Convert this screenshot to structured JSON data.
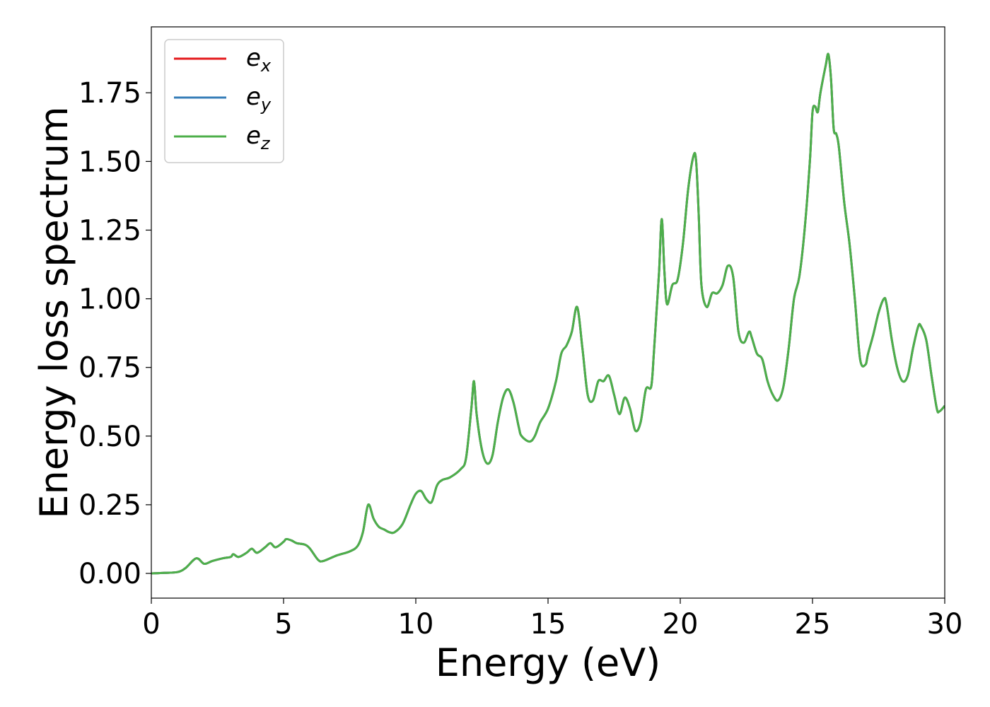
{
  "chart_data": {
    "type": "line",
    "title": "",
    "xlabel": "Energy (eV)",
    "ylabel": "Energy loss spectrum",
    "xlim": [
      0,
      30
    ],
    "ylim": [
      -0.09,
      1.99
    ],
    "xticks": [
      0,
      5,
      10,
      15,
      20,
      25,
      30
    ],
    "xtick_labels": [
      "0",
      "5",
      "10",
      "15",
      "20",
      "25",
      "30"
    ],
    "yticks": [
      0.0,
      0.25,
      0.5,
      0.75,
      1.0,
      1.25,
      1.5,
      1.75
    ],
    "ytick_labels": [
      "0.00",
      "0.25",
      "0.50",
      "0.75",
      "1.00",
      "1.25",
      "1.50",
      "1.75"
    ],
    "grid": false,
    "legend_position": "top-left",
    "legend": [
      {
        "base": "e",
        "sub": "x",
        "color": "#e41a1c"
      },
      {
        "base": "e",
        "sub": "y",
        "color": "#377eb8"
      },
      {
        "base": "e",
        "sub": "z",
        "color": "#4daf4a"
      }
    ],
    "x": [
      0,
      0.5,
      1.0,
      1.3,
      1.7,
      2.0,
      2.3,
      2.7,
      3.0,
      3.1,
      3.3,
      3.6,
      3.8,
      4.0,
      4.3,
      4.5,
      4.7,
      5.0,
      5.1,
      5.3,
      5.5,
      5.8,
      6.0,
      6.3,
      6.5,
      7.0,
      7.5,
      7.8,
      8.0,
      8.2,
      8.4,
      8.6,
      8.8,
      9.0,
      9.2,
      9.5,
      9.8,
      10.0,
      10.2,
      10.4,
      10.6,
      10.8,
      11.0,
      11.3,
      11.7,
      11.9,
      12.1,
      12.2,
      12.3,
      12.5,
      12.7,
      12.9,
      13.1,
      13.3,
      13.5,
      13.7,
      13.9,
      14.0,
      14.3,
      14.5,
      14.7,
      15.0,
      15.3,
      15.5,
      15.7,
      15.9,
      16.1,
      16.3,
      16.5,
      16.7,
      16.9,
      17.1,
      17.3,
      17.5,
      17.7,
      17.9,
      18.1,
      18.3,
      18.5,
      18.7,
      18.9,
      19.0,
      19.1,
      19.2,
      19.3,
      19.4,
      19.5,
      19.7,
      19.9,
      20.1,
      20.3,
      20.5,
      20.6,
      20.7,
      20.8,
      21.0,
      21.2,
      21.4,
      21.6,
      21.8,
      22.0,
      22.2,
      22.4,
      22.6,
      22.7,
      22.9,
      23.1,
      23.3,
      23.5,
      23.7,
      23.9,
      24.1,
      24.3,
      24.5,
      24.7,
      24.9,
      25.0,
      25.1,
      25.2,
      25.3,
      25.5,
      25.6,
      25.7,
      25.8,
      25.9,
      26.0,
      26.2,
      26.4,
      26.6,
      26.8,
      27.0,
      27.1,
      27.3,
      27.5,
      27.7,
      27.8,
      28.0,
      28.2,
      28.4,
      28.6,
      28.8,
      29.0,
      29.1,
      29.3,
      29.5,
      29.7,
      29.8,
      30.0
    ],
    "series": [
      {
        "name": "e_x",
        "color": "#e41a1c",
        "values": [
          0,
          0.002,
          0.005,
          0.02,
          0.055,
          0.035,
          0.045,
          0.055,
          0.06,
          0.07,
          0.06,
          0.075,
          0.09,
          0.075,
          0.095,
          0.11,
          0.095,
          0.115,
          0.125,
          0.12,
          0.11,
          0.105,
          0.09,
          0.05,
          0.045,
          0.065,
          0.08,
          0.1,
          0.15,
          0.25,
          0.2,
          0.17,
          0.16,
          0.15,
          0.15,
          0.18,
          0.25,
          0.29,
          0.3,
          0.27,
          0.26,
          0.32,
          0.34,
          0.35,
          0.38,
          0.42,
          0.6,
          0.7,
          0.58,
          0.45,
          0.4,
          0.43,
          0.55,
          0.64,
          0.67,
          0.62,
          0.53,
          0.5,
          0.48,
          0.5,
          0.55,
          0.6,
          0.7,
          0.8,
          0.83,
          0.88,
          0.97,
          0.82,
          0.65,
          0.63,
          0.7,
          0.7,
          0.72,
          0.65,
          0.58,
          0.64,
          0.6,
          0.52,
          0.55,
          0.67,
          0.68,
          0.8,
          0.95,
          1.1,
          1.29,
          1.1,
          0.98,
          1.05,
          1.07,
          1.2,
          1.4,
          1.52,
          1.5,
          1.3,
          1.05,
          0.97,
          1.02,
          1.02,
          1.05,
          1.12,
          1.08,
          0.88,
          0.84,
          0.88,
          0.86,
          0.8,
          0.78,
          0.7,
          0.65,
          0.63,
          0.68,
          0.82,
          1.0,
          1.08,
          1.25,
          1.5,
          1.68,
          1.7,
          1.68,
          1.75,
          1.85,
          1.89,
          1.8,
          1.62,
          1.6,
          1.55,
          1.35,
          1.2,
          1.0,
          0.78,
          0.76,
          0.8,
          0.87,
          0.95,
          1.0,
          0.98,
          0.85,
          0.75,
          0.7,
          0.72,
          0.82,
          0.9,
          0.9,
          0.85,
          0.72,
          0.6,
          0.59,
          0.61
        ]
      },
      {
        "name": "e_y",
        "color": "#377eb8",
        "values": [
          0,
          0.002,
          0.005,
          0.02,
          0.055,
          0.035,
          0.045,
          0.055,
          0.06,
          0.07,
          0.06,
          0.075,
          0.09,
          0.075,
          0.095,
          0.11,
          0.095,
          0.115,
          0.125,
          0.12,
          0.11,
          0.105,
          0.09,
          0.05,
          0.045,
          0.065,
          0.08,
          0.1,
          0.15,
          0.25,
          0.2,
          0.17,
          0.16,
          0.15,
          0.15,
          0.18,
          0.25,
          0.29,
          0.3,
          0.27,
          0.26,
          0.32,
          0.34,
          0.35,
          0.38,
          0.42,
          0.6,
          0.7,
          0.58,
          0.45,
          0.4,
          0.43,
          0.55,
          0.64,
          0.67,
          0.62,
          0.53,
          0.5,
          0.48,
          0.5,
          0.55,
          0.6,
          0.7,
          0.8,
          0.83,
          0.88,
          0.97,
          0.82,
          0.65,
          0.63,
          0.7,
          0.7,
          0.72,
          0.65,
          0.58,
          0.64,
          0.6,
          0.52,
          0.55,
          0.67,
          0.68,
          0.8,
          0.95,
          1.1,
          1.29,
          1.1,
          0.98,
          1.05,
          1.07,
          1.2,
          1.4,
          1.52,
          1.5,
          1.3,
          1.05,
          0.97,
          1.02,
          1.02,
          1.05,
          1.12,
          1.08,
          0.88,
          0.84,
          0.88,
          0.86,
          0.8,
          0.78,
          0.7,
          0.65,
          0.63,
          0.68,
          0.82,
          1.0,
          1.08,
          1.25,
          1.5,
          1.68,
          1.7,
          1.68,
          1.75,
          1.85,
          1.89,
          1.8,
          1.62,
          1.6,
          1.55,
          1.35,
          1.2,
          1.0,
          0.78,
          0.76,
          0.8,
          0.87,
          0.95,
          1.0,
          0.98,
          0.85,
          0.75,
          0.7,
          0.72,
          0.82,
          0.9,
          0.9,
          0.85,
          0.72,
          0.6,
          0.59,
          0.61
        ]
      },
      {
        "name": "e_z",
        "color": "#4daf4a",
        "values": [
          0,
          0.002,
          0.005,
          0.02,
          0.055,
          0.035,
          0.045,
          0.055,
          0.06,
          0.07,
          0.06,
          0.075,
          0.09,
          0.075,
          0.095,
          0.11,
          0.095,
          0.115,
          0.125,
          0.12,
          0.11,
          0.105,
          0.09,
          0.05,
          0.045,
          0.065,
          0.08,
          0.1,
          0.15,
          0.25,
          0.2,
          0.17,
          0.16,
          0.15,
          0.15,
          0.18,
          0.25,
          0.29,
          0.3,
          0.27,
          0.26,
          0.32,
          0.34,
          0.35,
          0.38,
          0.42,
          0.6,
          0.7,
          0.58,
          0.45,
          0.4,
          0.43,
          0.55,
          0.64,
          0.67,
          0.62,
          0.53,
          0.5,
          0.48,
          0.5,
          0.55,
          0.6,
          0.7,
          0.8,
          0.83,
          0.88,
          0.97,
          0.82,
          0.65,
          0.63,
          0.7,
          0.7,
          0.72,
          0.65,
          0.58,
          0.64,
          0.6,
          0.52,
          0.55,
          0.67,
          0.68,
          0.8,
          0.95,
          1.1,
          1.29,
          1.1,
          0.98,
          1.05,
          1.07,
          1.2,
          1.4,
          1.52,
          1.5,
          1.3,
          1.05,
          0.97,
          1.02,
          1.02,
          1.05,
          1.12,
          1.08,
          0.88,
          0.84,
          0.88,
          0.86,
          0.8,
          0.78,
          0.7,
          0.65,
          0.63,
          0.68,
          0.82,
          1.0,
          1.08,
          1.25,
          1.5,
          1.68,
          1.7,
          1.68,
          1.75,
          1.85,
          1.89,
          1.8,
          1.62,
          1.6,
          1.55,
          1.35,
          1.2,
          1.0,
          0.78,
          0.76,
          0.8,
          0.87,
          0.95,
          1.0,
          0.98,
          0.85,
          0.75,
          0.7,
          0.72,
          0.82,
          0.9,
          0.9,
          0.85,
          0.72,
          0.6,
          0.59,
          0.61
        ]
      }
    ]
  }
}
